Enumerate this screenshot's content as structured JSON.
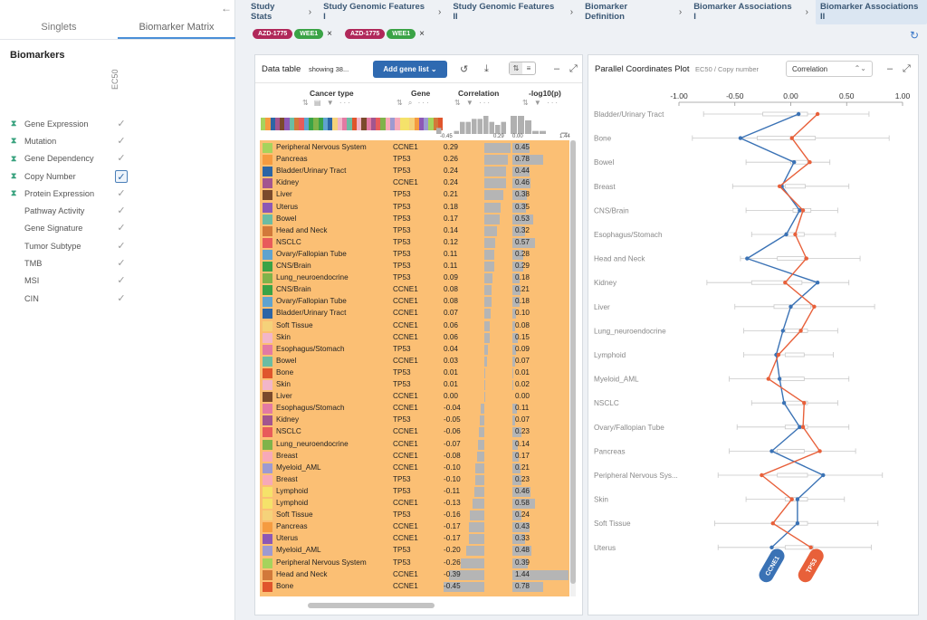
{
  "sidebar": {
    "collapse_icon": "←",
    "tabs": [
      {
        "label": "Singlets"
      },
      {
        "label": "Biomarker Matrix"
      }
    ],
    "active_tab": 1,
    "section_title": "Biomarkers",
    "column_header": "EC50",
    "items": [
      {
        "label": "Gene Expression",
        "icon": "hourglass",
        "selected": false
      },
      {
        "label": "Mutation",
        "icon": "hourglass",
        "selected": false
      },
      {
        "label": "Gene Dependency",
        "icon": "hourglass",
        "selected": false
      },
      {
        "label": "Copy Number",
        "icon": "hourglass",
        "selected": true
      },
      {
        "label": "Protein Expression",
        "icon": "hourglass",
        "selected": false
      },
      {
        "label": "Pathway Activity",
        "icon": "",
        "selected": false
      },
      {
        "label": "Gene Signature",
        "icon": "",
        "selected": false
      },
      {
        "label": "Tumor Subtype",
        "icon": "",
        "selected": false
      },
      {
        "label": "TMB",
        "icon": "",
        "selected": false
      },
      {
        "label": "MSI",
        "icon": "",
        "selected": false
      },
      {
        "label": "CIN",
        "icon": "",
        "selected": false
      }
    ]
  },
  "breadcrumb": [
    "Study Stats",
    "Study Genomic Features I",
    "Study Genomic Features II",
    "Biomarker Definition",
    "Biomarker Associations I",
    "Biomarker Associations II"
  ],
  "chips": [
    {
      "drug": "AZD-1775",
      "gene": "WEE1",
      "drug_color": "#b0285a",
      "gene_color": "#3aa346"
    },
    {
      "drug": "AZD-1775",
      "gene": "WEE1",
      "drug_color": "#b0285a",
      "gene_color": "#3aa346"
    }
  ],
  "data_table": {
    "title": "Data table",
    "showing": "showing 38...",
    "add_button": "Add gene list",
    "columns": {
      "cancer_type": "Cancer type",
      "gene": "Gene",
      "correlation": "Correlation",
      "log": "-log10(p)"
    },
    "corr_axis": [
      "-0.45",
      "0.29",
      "0.00"
    ],
    "log_axis": "1.44",
    "rows": [
      {
        "ct": "Peripheral Nervous System",
        "gene": "CCNE1",
        "corr": "0.29",
        "log": "0.45",
        "c": 0.29,
        "l": 0.45,
        "color": "#a6d35c"
      },
      {
        "ct": "Pancreas",
        "gene": "TP53",
        "corr": "0.26",
        "log": "0.78",
        "c": 0.26,
        "l": 0.78,
        "color": "#f59b40"
      },
      {
        "ct": "Bladder/Urinary Tract",
        "gene": "TP53",
        "corr": "0.24",
        "log": "0.44",
        "c": 0.24,
        "l": 0.44,
        "color": "#2c65a5"
      },
      {
        "ct": "Kidney",
        "gene": "CCNE1",
        "corr": "0.24",
        "log": "0.46",
        "c": 0.24,
        "l": 0.46,
        "color": "#a3558f"
      },
      {
        "ct": "Liver",
        "gene": "TP53",
        "corr": "0.21",
        "log": "0.38",
        "c": 0.21,
        "l": 0.38,
        "color": "#7b4a2c"
      },
      {
        "ct": "Uterus",
        "gene": "TP53",
        "corr": "0.18",
        "log": "0.35",
        "c": 0.18,
        "l": 0.35,
        "color": "#8d58b5"
      },
      {
        "ct": "Bowel",
        "gene": "TP53",
        "corr": "0.17",
        "log": "0.53",
        "c": 0.17,
        "l": 0.53,
        "color": "#6bbca3"
      },
      {
        "ct": "Head and Neck",
        "gene": "TP53",
        "corr": "0.14",
        "log": "0.32",
        "c": 0.14,
        "l": 0.32,
        "color": "#d2793a"
      },
      {
        "ct": "NSCLC",
        "gene": "TP53",
        "corr": "0.12",
        "log": "0.57",
        "c": 0.12,
        "l": 0.57,
        "color": "#e85b5b"
      },
      {
        "ct": "Ovary/Fallopian Tube",
        "gene": "TP53",
        "corr": "0.11",
        "log": "0.28",
        "c": 0.11,
        "l": 0.28,
        "color": "#5fa3cf"
      },
      {
        "ct": "CNS/Brain",
        "gene": "TP53",
        "corr": "0.11",
        "log": "0.29",
        "c": 0.11,
        "l": 0.29,
        "color": "#3aa346"
      },
      {
        "ct": "Lung_neuroendocrine",
        "gene": "TP53",
        "corr": "0.09",
        "log": "0.18",
        "c": 0.09,
        "l": 0.18,
        "color": "#7fb34a"
      },
      {
        "ct": "CNS/Brain",
        "gene": "CCNE1",
        "corr": "0.08",
        "log": "0.21",
        "c": 0.08,
        "l": 0.21,
        "color": "#3aa346"
      },
      {
        "ct": "Ovary/Fallopian Tube",
        "gene": "CCNE1",
        "corr": "0.08",
        "log": "0.18",
        "c": 0.08,
        "l": 0.18,
        "color": "#5fa3cf"
      },
      {
        "ct": "Bladder/Urinary Tract",
        "gene": "CCNE1",
        "corr": "0.07",
        "log": "0.10",
        "c": 0.07,
        "l": 0.1,
        "color": "#2c65a5"
      },
      {
        "ct": "Soft Tissue",
        "gene": "CCNE1",
        "corr": "0.06",
        "log": "0.08",
        "c": 0.06,
        "l": 0.08,
        "color": "#f5d27a"
      },
      {
        "ct": "Skin",
        "gene": "CCNE1",
        "corr": "0.06",
        "log": "0.15",
        "c": 0.06,
        "l": 0.15,
        "color": "#f2b6c9"
      },
      {
        "ct": "Esophagus/Stomach",
        "gene": "TP53",
        "corr": "0.04",
        "log": "0.09",
        "c": 0.04,
        "l": 0.09,
        "color": "#e37aa3"
      },
      {
        "ct": "Bowel",
        "gene": "CCNE1",
        "corr": "0.03",
        "log": "0.07",
        "c": 0.03,
        "l": 0.07,
        "color": "#6bbca3"
      },
      {
        "ct": "Bone",
        "gene": "TP53",
        "corr": "0.01",
        "log": "0.01",
        "c": 0.01,
        "l": 0.01,
        "color": "#e0552c"
      },
      {
        "ct": "Skin",
        "gene": "TP53",
        "corr": "0.01",
        "log": "0.02",
        "c": 0.01,
        "l": 0.02,
        "color": "#f2b6c9"
      },
      {
        "ct": "Liver",
        "gene": "CCNE1",
        "corr": "0.00",
        "log": "0.00",
        "c": 0.0,
        "l": 0.0,
        "color": "#7b4a2c"
      },
      {
        "ct": "Esophagus/Stomach",
        "gene": "CCNE1",
        "corr": "-0.04",
        "log": "0.11",
        "c": -0.04,
        "l": 0.11,
        "color": "#e37aa3"
      },
      {
        "ct": "Kidney",
        "gene": "TP53",
        "corr": "-0.05",
        "log": "0.07",
        "c": -0.05,
        "l": 0.07,
        "color": "#a3558f"
      },
      {
        "ct": "NSCLC",
        "gene": "CCNE1",
        "corr": "-0.06",
        "log": "0.23",
        "c": -0.06,
        "l": 0.23,
        "color": "#e85b5b"
      },
      {
        "ct": "Lung_neuroendocrine",
        "gene": "CCNE1",
        "corr": "-0.07",
        "log": "0.14",
        "c": -0.07,
        "l": 0.14,
        "color": "#7fb34a"
      },
      {
        "ct": "Breast",
        "gene": "CCNE1",
        "corr": "-0.08",
        "log": "0.17",
        "c": -0.08,
        "l": 0.17,
        "color": "#f7a9b8"
      },
      {
        "ct": "Myeloid_AML",
        "gene": "CCNE1",
        "corr": "-0.10",
        "log": "0.21",
        "c": -0.1,
        "l": 0.21,
        "color": "#9d9ad1"
      },
      {
        "ct": "Breast",
        "gene": "TP53",
        "corr": "-0.10",
        "log": "0.23",
        "c": -0.1,
        "l": 0.23,
        "color": "#f7a9b8"
      },
      {
        "ct": "Lymphoid",
        "gene": "TP53",
        "corr": "-0.11",
        "log": "0.46",
        "c": -0.11,
        "l": 0.46,
        "color": "#f5e26a"
      },
      {
        "ct": "Lymphoid",
        "gene": "CCNE1",
        "corr": "-0.13",
        "log": "0.58",
        "c": -0.13,
        "l": 0.58,
        "color": "#f5e26a"
      },
      {
        "ct": "Soft Tissue",
        "gene": "TP53",
        "corr": "-0.16",
        "log": "0.24",
        "c": -0.16,
        "l": 0.24,
        "color": "#f5d27a"
      },
      {
        "ct": "Pancreas",
        "gene": "CCNE1",
        "corr": "-0.17",
        "log": "0.43",
        "c": -0.17,
        "l": 0.43,
        "color": "#f59b40"
      },
      {
        "ct": "Uterus",
        "gene": "CCNE1",
        "corr": "-0.17",
        "log": "0.33",
        "c": -0.17,
        "l": 0.33,
        "color": "#8d58b5"
      },
      {
        "ct": "Myeloid_AML",
        "gene": "TP53",
        "corr": "-0.20",
        "log": "0.48",
        "c": -0.2,
        "l": 0.48,
        "color": "#9d9ad1"
      },
      {
        "ct": "Peripheral Nervous System",
        "gene": "TP53",
        "corr": "-0.26",
        "log": "0.39",
        "c": -0.26,
        "l": 0.39,
        "color": "#a6d35c"
      },
      {
        "ct": "Head and Neck",
        "gene": "CCNE1",
        "corr": "-0.39",
        "log": "1.44",
        "c": -0.39,
        "l": 1.44,
        "color": "#d2793a"
      },
      {
        "ct": "Bone",
        "gene": "CCNE1",
        "corr": "-0.45",
        "log": "0.78",
        "c": -0.45,
        "l": 0.78,
        "color": "#e0552c"
      }
    ]
  },
  "parallel": {
    "title": "Parallel Coordinates Plot",
    "subtitle": "EC50 / Copy number",
    "select_value": "Correlation"
  },
  "chart_data": {
    "type": "line",
    "title": "Parallel Coordinates Plot",
    "xlim": [
      -1.0,
      1.0
    ],
    "x_ticks": [
      "-1.00",
      "-0.50",
      "0.00",
      "0.50",
      "1.00"
    ],
    "categories": [
      "Bladder/Urinary Tract",
      "Bone",
      "Bowel",
      "Breast",
      "CNS/Brain",
      "Esophagus/Stomach",
      "Head and Neck",
      "Kidney",
      "Liver",
      "Lung_neuroendocrine",
      "Lymphoid",
      "Myeloid_AML",
      "NSCLC",
      "Ovary/Fallopian Tube",
      "Pancreas",
      "Peripheral Nervous Sys...",
      "Skin",
      "Soft Tissue",
      "Uterus"
    ],
    "series": [
      {
        "name": "CCNE1",
        "color": "#3a72b5",
        "values": [
          0.07,
          -0.45,
          0.03,
          -0.08,
          0.08,
          -0.04,
          -0.39,
          0.24,
          0.0,
          -0.07,
          -0.13,
          -0.1,
          -0.06,
          0.08,
          -0.17,
          0.29,
          0.06,
          0.06,
          -0.17
        ]
      },
      {
        "name": "TP53",
        "color": "#e8603a",
        "values": [
          0.24,
          0.01,
          0.17,
          -0.1,
          0.11,
          0.04,
          0.14,
          -0.05,
          0.21,
          0.09,
          -0.11,
          -0.2,
          0.12,
          0.11,
          0.26,
          -0.26,
          0.01,
          -0.16,
          0.18
        ]
      }
    ],
    "box_whiskers": [
      {
        "min": -0.78,
        "q1": -0.25,
        "med": -0.05,
        "q3": 0.15,
        "max": 0.7
      },
      {
        "min": -0.88,
        "q1": -0.3,
        "med": 0.0,
        "q3": 0.22,
        "max": 0.88
      },
      {
        "min": -0.4,
        "q1": 0.0,
        "med": 0.08,
        "q3": 0.15,
        "max": 0.35
      },
      {
        "min": -0.52,
        "q1": -0.05,
        "med": 0.05,
        "q3": 0.13,
        "max": 0.52
      },
      {
        "min": -0.4,
        "q1": 0.02,
        "med": 0.1,
        "q3": 0.18,
        "max": 0.42
      },
      {
        "min": -0.35,
        "q1": -0.05,
        "med": 0.03,
        "q3": 0.12,
        "max": 0.4
      },
      {
        "min": -0.45,
        "q1": -0.12,
        "med": 0.0,
        "q3": 0.12,
        "max": 0.62
      },
      {
        "min": -0.75,
        "q1": -0.35,
        "med": -0.12,
        "q3": 0.1,
        "max": 0.52
      },
      {
        "min": -0.5,
        "q1": -0.15,
        "med": 0.05,
        "q3": 0.18,
        "max": 0.75
      },
      {
        "min": -0.42,
        "q1": -0.05,
        "med": 0.05,
        "q3": 0.15,
        "max": 0.42
      },
      {
        "min": -0.42,
        "q1": -0.05,
        "med": 0.05,
        "q3": 0.12,
        "max": 0.38
      },
      {
        "min": -0.55,
        "q1": -0.1,
        "med": 0.05,
        "q3": 0.12,
        "max": 0.52
      },
      {
        "min": -0.35,
        "q1": -0.05,
        "med": 0.05,
        "q3": 0.15,
        "max": 0.42
      },
      {
        "min": -0.48,
        "q1": -0.05,
        "med": 0.05,
        "q3": 0.15,
        "max": 0.52
      },
      {
        "min": -0.55,
        "q1": -0.12,
        "med": 0.02,
        "q3": 0.12,
        "max": 0.58
      },
      {
        "min": -0.65,
        "q1": -0.12,
        "med": 0.0,
        "q3": 0.15,
        "max": 0.82
      },
      {
        "min": -0.4,
        "q1": -0.05,
        "med": 0.05,
        "q3": 0.15,
        "max": 0.48
      },
      {
        "min": -0.68,
        "q1": -0.15,
        "med": 0.0,
        "q3": 0.15,
        "max": 0.78
      },
      {
        "min": -0.65,
        "q1": -0.05,
        "med": 0.05,
        "q3": 0.2,
        "max": 0.72
      }
    ]
  }
}
